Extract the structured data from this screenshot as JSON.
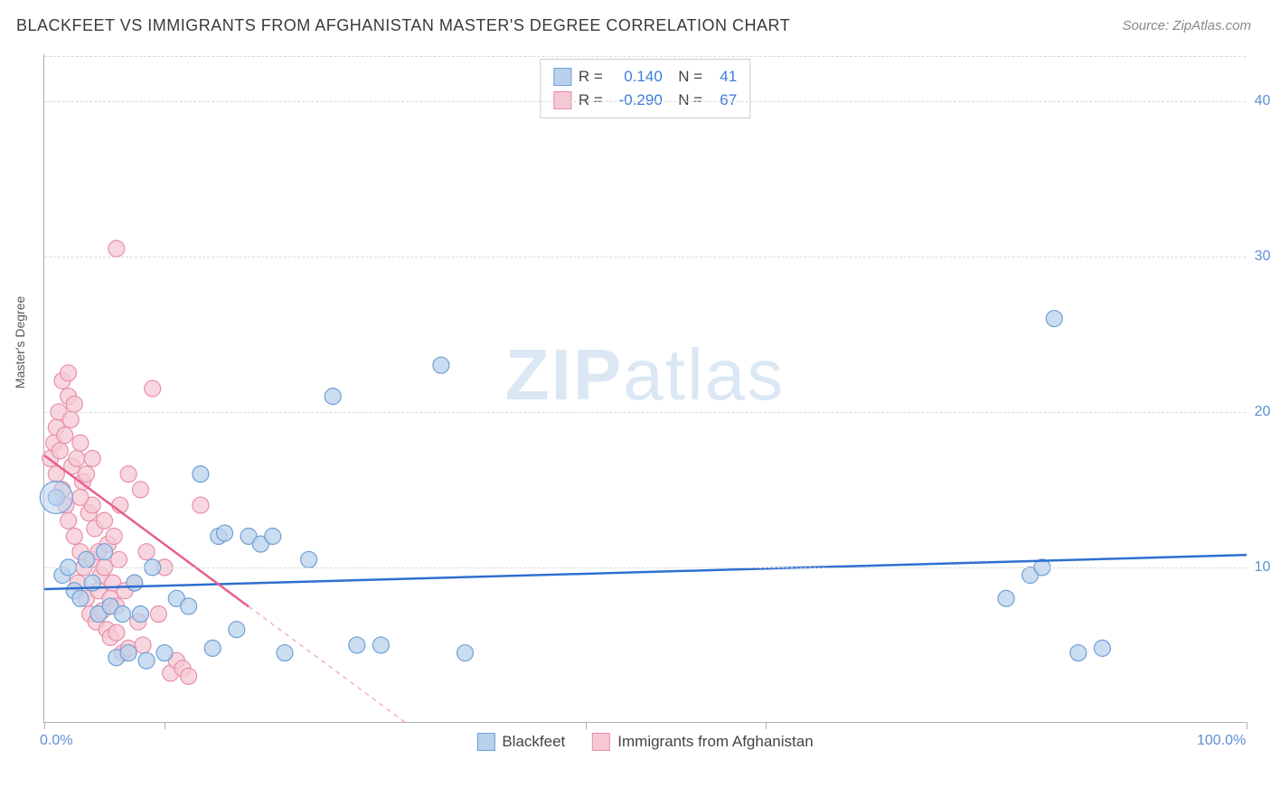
{
  "header": {
    "title": "BLACKFEET VS IMMIGRANTS FROM AFGHANISTAN MASTER'S DEGREE CORRELATION CHART",
    "source": "Source: ZipAtlas.com"
  },
  "ylabel": "Master's Degree",
  "watermark": {
    "bold": "ZIP",
    "light": "atlas"
  },
  "chart": {
    "type": "scatter",
    "xlim": [
      0,
      100
    ],
    "ylim": [
      0,
      43
    ],
    "xtick_labels": [
      {
        "pos": 0,
        "label": "0.0%"
      },
      {
        "pos": 100,
        "label": "100.0%"
      }
    ],
    "xtick_marks": [
      0,
      10,
      45,
      60,
      100
    ],
    "ytick_labels": [
      {
        "pos": 10,
        "label": "10.0%"
      },
      {
        "pos": 20,
        "label": "20.0%"
      },
      {
        "pos": 30,
        "label": "30.0%"
      },
      {
        "pos": 40,
        "label": "40.0%"
      }
    ],
    "grid_color": "#d8d8d8",
    "background_color": "#ffffff",
    "point_radius": 9,
    "series": [
      {
        "name": "Blackfeet",
        "fill": "#b9d1ec",
        "stroke": "#6fa0d6",
        "trend": {
          "color": "#2f6fd0",
          "width": 2.5,
          "y0": 8.6,
          "y100": 10.8,
          "dash_after_x": 100
        },
        "stats": {
          "R": "0.140",
          "N": "41"
        },
        "points": [
          [
            1,
            14.5
          ],
          [
            1.5,
            9.5
          ],
          [
            2,
            10
          ],
          [
            2.5,
            8.5
          ],
          [
            3,
            8
          ],
          [
            3.5,
            10.5
          ],
          [
            4,
            9
          ],
          [
            4.5,
            7
          ],
          [
            5,
            11
          ],
          [
            5.5,
            7.5
          ],
          [
            6,
            4.2
          ],
          [
            6.5,
            7
          ],
          [
            7,
            4.5
          ],
          [
            7.5,
            9
          ],
          [
            8,
            7
          ],
          [
            8.5,
            4
          ],
          [
            9,
            10
          ],
          [
            10,
            4.5
          ],
          [
            11,
            8
          ],
          [
            12,
            7.5
          ],
          [
            13,
            16
          ],
          [
            14,
            4.8
          ],
          [
            14.5,
            12
          ],
          [
            15,
            12.2
          ],
          [
            16,
            6
          ],
          [
            17,
            12
          ],
          [
            18,
            11.5
          ],
          [
            19,
            12
          ],
          [
            20,
            4.5
          ],
          [
            22,
            10.5
          ],
          [
            24,
            21
          ],
          [
            26,
            5
          ],
          [
            28,
            5
          ],
          [
            33,
            23
          ],
          [
            35,
            4.5
          ],
          [
            80,
            8
          ],
          [
            82,
            9.5
          ],
          [
            83,
            10
          ],
          [
            84,
            26
          ],
          [
            86,
            4.5
          ],
          [
            88,
            4.8
          ]
        ]
      },
      {
        "name": "Immigrants from Afghanistan",
        "fill": "#f6c8d4",
        "stroke": "#e88fa8",
        "trend": {
          "color": "#e85f8a",
          "width": 2.5,
          "y0": 17.2,
          "y100": -40,
          "dash_after_x": 17
        },
        "stats": {
          "R": "-0.290",
          "N": "67"
        },
        "points": [
          [
            0.5,
            17
          ],
          [
            0.8,
            18
          ],
          [
            1,
            16
          ],
          [
            1,
            19
          ],
          [
            1.2,
            20
          ],
          [
            1.3,
            17.5
          ],
          [
            1.5,
            22
          ],
          [
            1.5,
            15
          ],
          [
            1.7,
            18.5
          ],
          [
            1.8,
            14
          ],
          [
            2,
            21
          ],
          [
            2,
            13
          ],
          [
            2.2,
            19.5
          ],
          [
            2.3,
            16.5
          ],
          [
            2.5,
            20.5
          ],
          [
            2.5,
            12
          ],
          [
            2.7,
            17
          ],
          [
            2.8,
            9
          ],
          [
            3,
            18
          ],
          [
            3,
            11
          ],
          [
            3.2,
            15.5
          ],
          [
            3.3,
            10
          ],
          [
            3.5,
            16
          ],
          [
            3.5,
            8
          ],
          [
            3.7,
            13.5
          ],
          [
            3.8,
            7
          ],
          [
            4,
            14
          ],
          [
            4,
            10.5
          ],
          [
            4.2,
            12.5
          ],
          [
            4.3,
            6.5
          ],
          [
            4.5,
            11
          ],
          [
            4.5,
            8.5
          ],
          [
            4.7,
            9.5
          ],
          [
            4.8,
            7.2
          ],
          [
            5,
            10
          ],
          [
            5,
            13
          ],
          [
            5.2,
            6
          ],
          [
            5.3,
            11.5
          ],
          [
            5.5,
            8
          ],
          [
            5.5,
            5.5
          ],
          [
            5.7,
            9
          ],
          [
            5.8,
            12
          ],
          [
            6,
            7.5
          ],
          [
            6,
            5.8
          ],
          [
            6.2,
            10.5
          ],
          [
            6.3,
            14
          ],
          [
            6.5,
            4.5
          ],
          [
            6.7,
            8.5
          ],
          [
            7,
            16
          ],
          [
            7,
            4.8
          ],
          [
            7.5,
            9
          ],
          [
            7.8,
            6.5
          ],
          [
            8,
            15
          ],
          [
            8.2,
            5
          ],
          [
            8.5,
            11
          ],
          [
            9,
            21.5
          ],
          [
            9.5,
            7
          ],
          [
            10,
            10
          ],
          [
            10.5,
            3.2
          ],
          [
            11,
            4
          ],
          [
            11.5,
            3.5
          ],
          [
            12,
            3
          ],
          [
            13,
            14
          ],
          [
            6,
            30.5
          ],
          [
            2,
            22.5
          ],
          [
            3,
            14.5
          ],
          [
            4,
            17
          ]
        ]
      }
    ]
  },
  "bottom_legend": [
    {
      "label": "Blackfeet",
      "fill": "#b9d1ec",
      "stroke": "#6fa0d6"
    },
    {
      "label": "Immigrants from Afghanistan",
      "fill": "#f6c8d4",
      "stroke": "#e88fa8"
    }
  ]
}
